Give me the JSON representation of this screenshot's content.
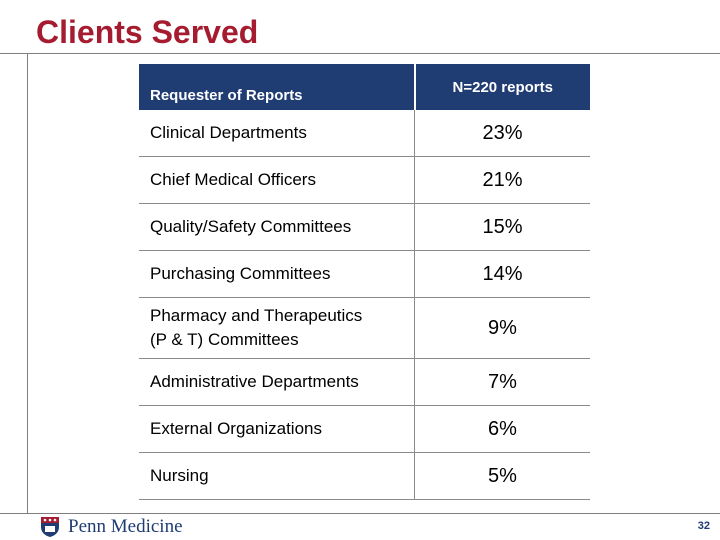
{
  "slide": {
    "title": "Clients Served",
    "page_number": "32",
    "logo_text": "Penn Medicine"
  },
  "table": {
    "header": [
      "Requester of Reports",
      "N=220 reports"
    ],
    "rows": [
      {
        "label": "Clinical Departments",
        "value": "23%"
      },
      {
        "label": "Chief Medical Officers",
        "value": "21%"
      },
      {
        "label": "Quality/Safety Committees",
        "value": "15%"
      },
      {
        "label": "Purchasing Committees",
        "value": "14%"
      },
      {
        "label": "Pharmacy and Therapeutics",
        "label2": "(P & T)  Committees",
        "value": "9%"
      },
      {
        "label": "Administrative Departments",
        "value": "7%"
      },
      {
        "label": "External Organizations",
        "value": "6%"
      },
      {
        "label": "Nursing",
        "value": "5%"
      }
    ]
  },
  "colors": {
    "title": "#a51c30",
    "header_bg": "#1f3c73",
    "brand_blue": "#1f3c73"
  },
  "icons": [
    "penn-shield-icon"
  ]
}
